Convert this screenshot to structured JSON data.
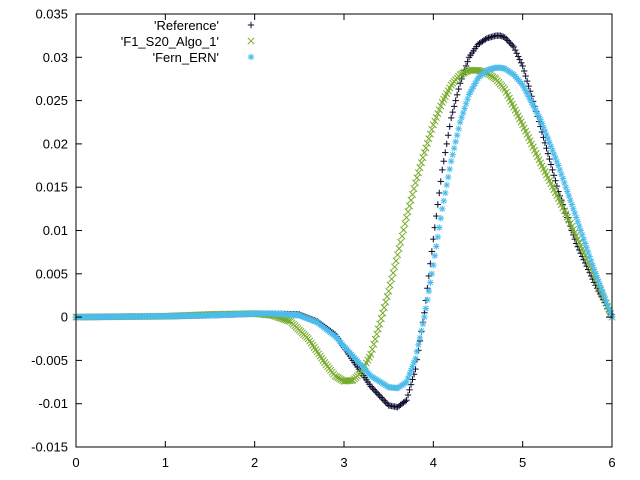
{
  "chart_data": {
    "type": "scatter",
    "title": "",
    "xlabel": "",
    "ylabel": "",
    "xlim": [
      0,
      6
    ],
    "ylim": [
      -0.015,
      0.035
    ],
    "grid": false,
    "legend_position": "top-left",
    "x_ticks": [
      0,
      1,
      2,
      3,
      4,
      5,
      6
    ],
    "x_tick_labels": [
      "0",
      "1",
      "2",
      "3",
      "4",
      "5",
      "6"
    ],
    "y_ticks": [
      -0.015,
      -0.01,
      -0.005,
      0,
      0.005,
      0.01,
      0.015,
      0.02,
      0.025,
      0.03,
      0.035
    ],
    "y_tick_labels": [
      "-0.015",
      "-0.01",
      "-0.005",
      "0",
      "0.005",
      "0.01",
      "0.015",
      "0.02",
      "0.025",
      "0.03",
      "0.035"
    ],
    "series": [
      {
        "name": "'Reference'",
        "marker": "plus",
        "color": "#0b0b2e",
        "x": [
          0,
          1,
          1.5,
          2,
          2.2,
          2.5,
          2.7,
          2.9,
          3.1,
          3.3,
          3.5,
          3.6,
          3.7,
          3.8,
          3.9,
          4.0,
          4.1,
          4.2,
          4.3,
          4.4,
          4.5,
          4.6,
          4.7,
          4.75,
          4.8,
          4.9,
          5.0,
          5.2,
          5.4,
          5.6,
          5.8,
          6.0
        ],
        "y": [
          0,
          0.0001,
          0.0002,
          0.0004,
          0.0004,
          0.0003,
          -0.0005,
          -0.002,
          -0.005,
          -0.008,
          -0.0102,
          -0.0104,
          -0.0096,
          -0.006,
          0.0005,
          0.009,
          0.017,
          0.023,
          0.027,
          0.03,
          0.0315,
          0.0322,
          0.0325,
          0.0325,
          0.0323,
          0.0312,
          0.029,
          0.022,
          0.0145,
          0.0085,
          0.004,
          0.0
        ]
      },
      {
        "name": "'F1_S20_Algo_1'",
        "marker": "cross",
        "color": "#77ab2c",
        "x": [
          0,
          1,
          1.5,
          2,
          2.2,
          2.4,
          2.6,
          2.8,
          2.9,
          3.0,
          3.1,
          3.2,
          3.3,
          3.4,
          3.5,
          3.6,
          3.7,
          3.8,
          3.9,
          4.0,
          4.1,
          4.2,
          4.3,
          4.4,
          4.5,
          4.6,
          4.7,
          4.8,
          5.0,
          5.2,
          5.4,
          5.6,
          5.8,
          6.0
        ],
        "y": [
          0,
          0.0001,
          0.0003,
          0.0004,
          0.0002,
          -0.0005,
          -0.0025,
          -0.0055,
          -0.0068,
          -0.0074,
          -0.0073,
          -0.0063,
          -0.0043,
          -0.0008,
          0.003,
          0.0072,
          0.0115,
          0.0155,
          0.019,
          0.0222,
          0.0248,
          0.0268,
          0.028,
          0.0285,
          0.0285,
          0.0282,
          0.0275,
          0.0263,
          0.0222,
          0.0178,
          0.0137,
          0.0094,
          0.0048,
          0.0
        ]
      },
      {
        "name": "'Fern_ERN'",
        "marker": "star",
        "color": "#4cbceb",
        "x": [
          0,
          1,
          1.5,
          2,
          2.2,
          2.5,
          2.7,
          2.9,
          3.1,
          3.3,
          3.5,
          3.6,
          3.7,
          3.8,
          3.9,
          4.0,
          4.1,
          4.2,
          4.3,
          4.4,
          4.5,
          4.6,
          4.7,
          4.75,
          4.8,
          4.9,
          5.0,
          5.2,
          5.4,
          5.6,
          5.8,
          6.0
        ],
        "y": [
          0,
          0.0001,
          0.0002,
          0.0004,
          0.0004,
          0.0002,
          -0.0006,
          -0.0022,
          -0.0045,
          -0.0068,
          -0.0081,
          -0.0082,
          -0.0075,
          -0.0048,
          0.0,
          0.006,
          0.0125,
          0.018,
          0.0225,
          0.0257,
          0.0276,
          0.0285,
          0.0288,
          0.0288,
          0.0287,
          0.028,
          0.0268,
          0.0228,
          0.0175,
          0.0115,
          0.0055,
          0.0
        ]
      }
    ]
  }
}
